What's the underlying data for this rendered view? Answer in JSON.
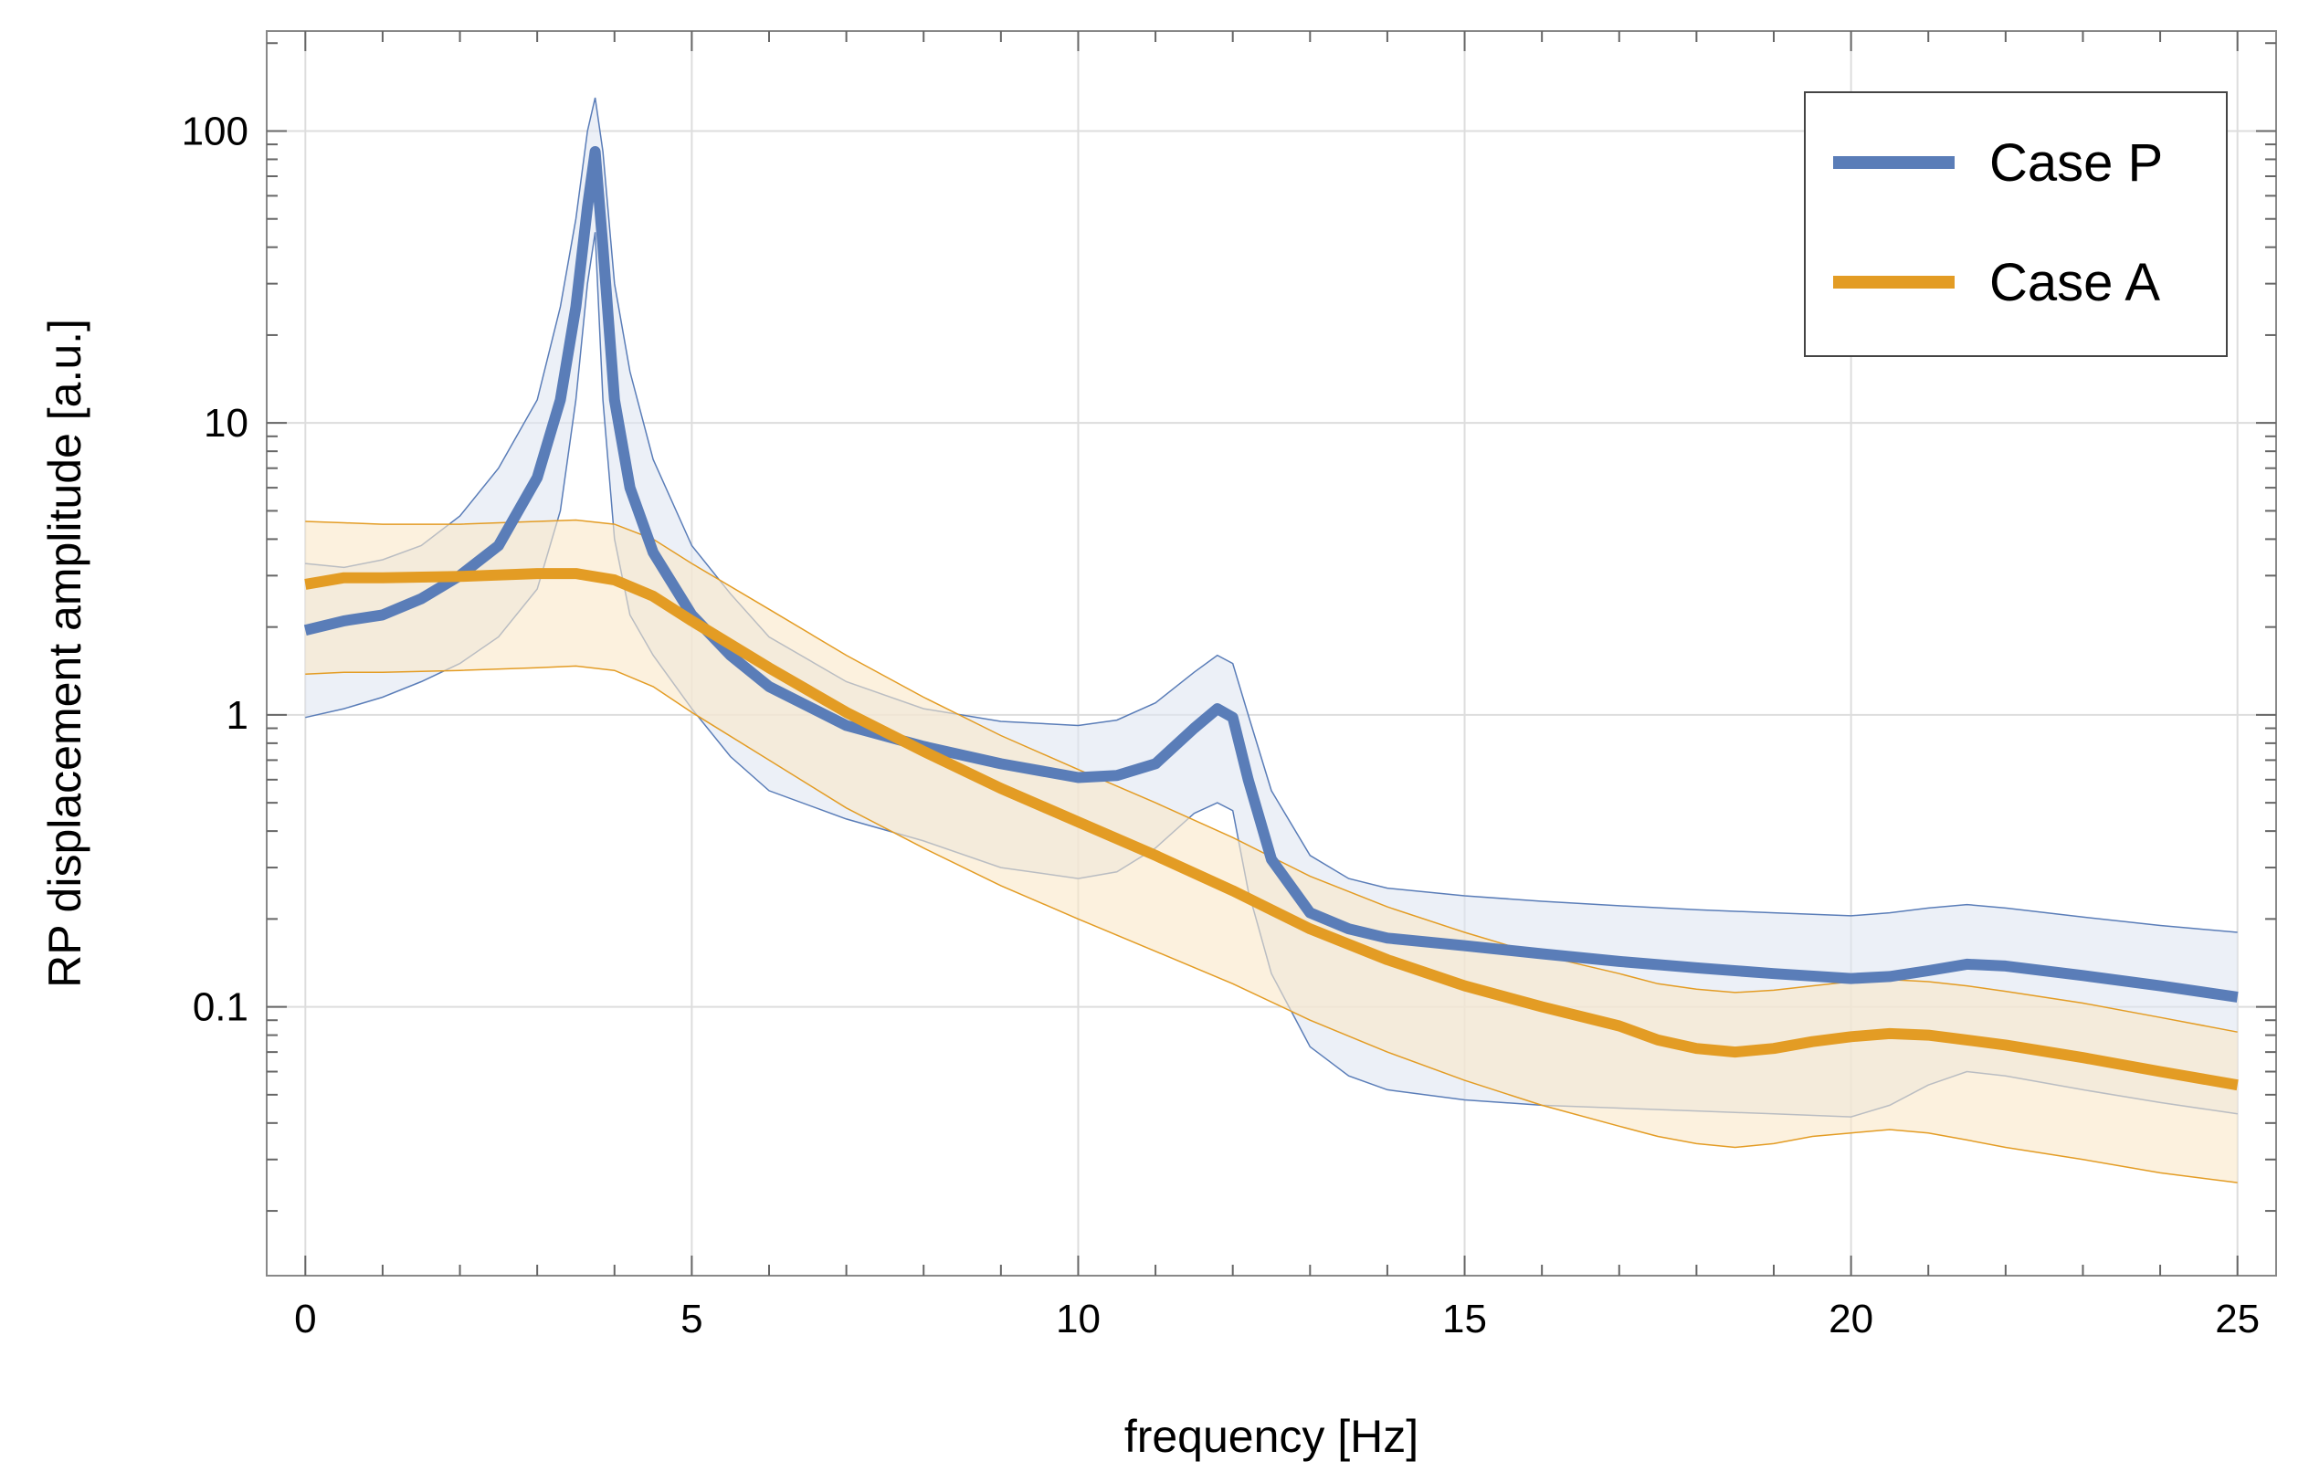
{
  "chart_data": {
    "type": "line",
    "xlabel": "frequency [Hz]",
    "ylabel": "RP displacement amplitude [a.u.]",
    "xlim": [
      -0.5,
      25.5
    ],
    "ylim": [
      0.012,
      220
    ],
    "yscale": "log",
    "grid": true,
    "legend_position": "top-right",
    "x_ticks": [
      0,
      5,
      10,
      15,
      20,
      25
    ],
    "x_tick_labels": [
      "0",
      "5",
      "10",
      "15",
      "20",
      "25"
    ],
    "y_ticks": [
      0.1,
      1,
      10,
      100
    ],
    "y_tick_labels": [
      "0.1",
      "1",
      "10",
      "100"
    ],
    "series": [
      {
        "name": "Case P",
        "color": "#5A7DB8",
        "band_color": "#dfe6f2",
        "x": [
          0,
          0.5,
          1,
          1.5,
          2,
          2.5,
          3,
          3.3,
          3.5,
          3.65,
          3.75,
          3.85,
          4.0,
          4.2,
          4.5,
          5,
          5.5,
          6,
          7,
          8,
          9,
          10,
          10.5,
          11,
          11.5,
          11.8,
          12.0,
          12.2,
          12.5,
          13,
          13.5,
          14,
          15,
          16,
          17,
          18,
          19,
          20,
          20.5,
          21,
          21.5,
          22,
          23,
          24,
          25
        ],
        "y": [
          1.95,
          2.1,
          2.2,
          2.5,
          3.0,
          3.8,
          6.5,
          12,
          25,
          55,
          85,
          40,
          12,
          6.0,
          3.6,
          2.2,
          1.6,
          1.25,
          0.92,
          0.78,
          0.68,
          0.61,
          0.62,
          0.68,
          0.9,
          1.05,
          0.98,
          0.6,
          0.32,
          0.21,
          0.185,
          0.172,
          0.162,
          0.152,
          0.143,
          0.136,
          0.13,
          0.125,
          0.127,
          0.133,
          0.14,
          0.138,
          0.128,
          0.118,
          0.108
        ],
        "upper": [
          3.3,
          3.2,
          3.4,
          3.8,
          4.8,
          7.0,
          12,
          25,
          50,
          100,
          130,
          85,
          30,
          15,
          7.5,
          3.8,
          2.6,
          1.85,
          1.3,
          1.05,
          0.95,
          0.92,
          0.96,
          1.1,
          1.4,
          1.6,
          1.5,
          1.0,
          0.55,
          0.33,
          0.275,
          0.255,
          0.24,
          0.23,
          0.222,
          0.215,
          0.21,
          0.205,
          0.21,
          0.218,
          0.224,
          0.218,
          0.203,
          0.19,
          0.18
        ],
        "lower": [
          0.98,
          1.05,
          1.15,
          1.3,
          1.5,
          1.85,
          2.7,
          5.0,
          12,
          30,
          45,
          12,
          4.0,
          2.2,
          1.6,
          1.05,
          0.72,
          0.55,
          0.44,
          0.37,
          0.3,
          0.275,
          0.29,
          0.35,
          0.46,
          0.5,
          0.47,
          0.25,
          0.13,
          0.073,
          0.058,
          0.052,
          0.048,
          0.046,
          0.045,
          0.044,
          0.043,
          0.042,
          0.046,
          0.054,
          0.06,
          0.058,
          0.052,
          0.047,
          0.043
        ]
      },
      {
        "name": "Case A",
        "color": "#E39C24",
        "band_color": "#fae7c8",
        "x": [
          0,
          0.5,
          1,
          2,
          3,
          3.5,
          4,
          4.5,
          5,
          6,
          7,
          8,
          9,
          10,
          11,
          12,
          13,
          14,
          15,
          16,
          17,
          17.5,
          18,
          18.5,
          19,
          19.5,
          20,
          20.5,
          21,
          21.5,
          22,
          23,
          24,
          25
        ],
        "y": [
          2.8,
          2.95,
          2.95,
          2.98,
          3.05,
          3.05,
          2.9,
          2.55,
          2.1,
          1.45,
          1.02,
          0.75,
          0.56,
          0.43,
          0.33,
          0.25,
          0.185,
          0.145,
          0.118,
          0.1,
          0.086,
          0.077,
          0.072,
          0.07,
          0.072,
          0.076,
          0.079,
          0.081,
          0.08,
          0.077,
          0.074,
          0.067,
          0.06,
          0.054
        ],
        "upper": [
          4.6,
          4.55,
          4.5,
          4.5,
          4.6,
          4.65,
          4.5,
          4.0,
          3.3,
          2.3,
          1.6,
          1.15,
          0.85,
          0.65,
          0.5,
          0.38,
          0.28,
          0.22,
          0.18,
          0.15,
          0.13,
          0.12,
          0.115,
          0.112,
          0.114,
          0.118,
          0.122,
          0.124,
          0.122,
          0.118,
          0.113,
          0.103,
          0.092,
          0.082
        ],
        "lower": [
          1.38,
          1.4,
          1.4,
          1.42,
          1.45,
          1.47,
          1.42,
          1.25,
          1.02,
          0.7,
          0.48,
          0.35,
          0.26,
          0.2,
          0.155,
          0.12,
          0.09,
          0.07,
          0.056,
          0.046,
          0.039,
          0.036,
          0.034,
          0.033,
          0.034,
          0.036,
          0.037,
          0.038,
          0.037,
          0.035,
          0.033,
          0.03,
          0.027,
          0.025
        ]
      }
    ]
  }
}
